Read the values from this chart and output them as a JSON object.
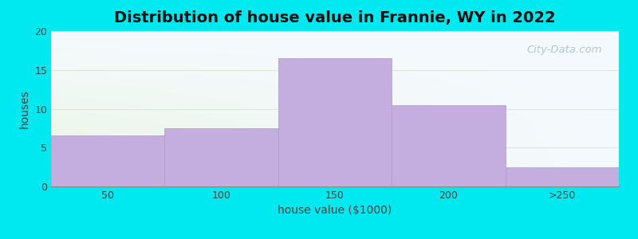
{
  "title": "Distribution of house value in Frannie, WY in 2022",
  "xlabel": "house value ($1000)",
  "ylabel": "houses",
  "categories": [
    "50",
    "100",
    "150",
    "200",
    ">250"
  ],
  "values": [
    6.6,
    7.5,
    16.5,
    10.5,
    2.5
  ],
  "bar_color": "#c4aee0",
  "bar_edgecolor": "#b09ac8",
  "background_outer": "#00e8f0",
  "background_inner_left": "#e8f5e0",
  "background_inner_right": "#f5faff",
  "background_inner_top": "#f5faff",
  "background_inner_bottom": "#e8f5e0",
  "ylim": [
    0,
    20
  ],
  "yticks": [
    0,
    5,
    10,
    15,
    20
  ],
  "title_fontsize": 14,
  "axis_label_fontsize": 10,
  "tick_fontsize": 9,
  "watermark_text": "City-Data.com",
  "watermark_color": "#b0c8d8",
  "grid_color": "#dde8d8",
  "bar_linewidth": 0.5
}
